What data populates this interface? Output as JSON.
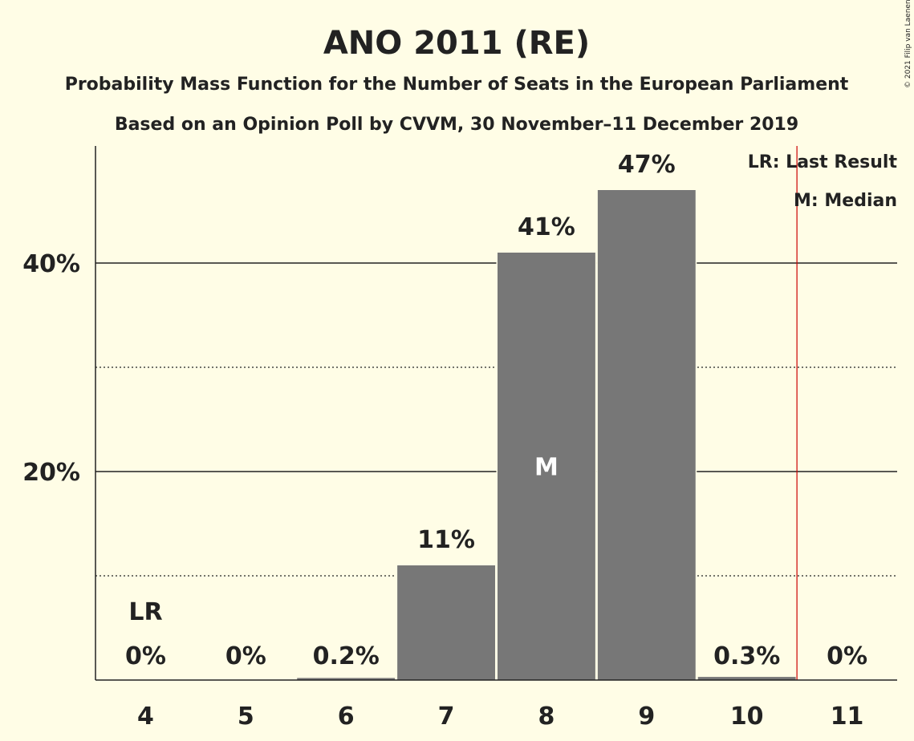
{
  "title": "ANO 2011 (RE)",
  "subtitle1": "Probability Mass Function for the Number of Seats in the European Parliament",
  "subtitle2": "Based on an Opinion Poll by CVVM, 30 November–11 December 2019",
  "copyright": "© 2021 Filip van Laenen",
  "legend": {
    "last_result": "LR: Last Result",
    "median": "M: Median"
  },
  "colors": {
    "background": "#fffde6",
    "bar": "#777777",
    "last_result_line": "#cc0000"
  },
  "chart_data": {
    "type": "bar",
    "categories": [
      "4",
      "5",
      "6",
      "7",
      "8",
      "9",
      "10",
      "11"
    ],
    "values": [
      0,
      0,
      0.2,
      11,
      41,
      47,
      0.3,
      0
    ],
    "value_labels": [
      "0%",
      "0%",
      "0.2%",
      "11%",
      "41%",
      "47%",
      "0.3%",
      "0%"
    ],
    "ylim": [
      0,
      51
    ],
    "yticks": [
      20,
      40
    ],
    "ytick_labels": [
      "20%",
      "40%"
    ],
    "minor_gridlines": [
      10,
      30
    ],
    "last_result_seats": "4",
    "last_result_label": "LR",
    "median_seats": "8",
    "median_label": "M",
    "majority_line_between": [
      "10",
      "11"
    ]
  }
}
